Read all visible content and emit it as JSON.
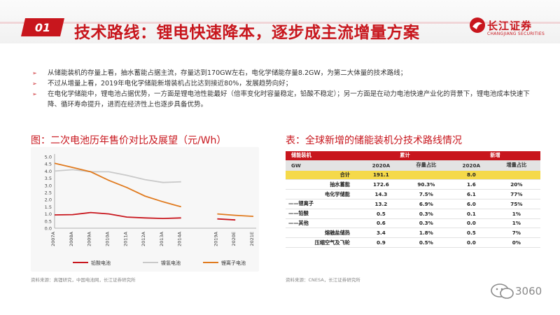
{
  "header": {
    "section_number": "01",
    "title": "技术路线：锂电快速降本，逐步成主流增量方案",
    "logo_name": "长江证券",
    "logo_en": "CHANGJIANG SECURITIES"
  },
  "bullets": [
    "从储能装机的存量上看，抽水蓄能占据主流，存量达到170GW左右，电化学储能存量8.2GW，为第二大体量的技术路线；",
    "不过从增量上看，2019年电化学储能新增装机占比达到接近80%，发展趋势向好；",
    "在电化学储能中，锂电池占据优势，一方面是锂电池性能最好（倍率变化时容量稳定，铅酸不稳定）；另一方面是在动力电池快速产业化的背景下，锂电池成本快速下降、循环寿命提升，进而在经济性上也逐步具备优势。"
  ],
  "figure": {
    "title": "图：二次电池历年售价对比及展望（元/Wh）",
    "source": "资料来源：真锂研究，中国电池网，长江证券研究所"
  },
  "table_section": {
    "title": "表：全球新增的储能装机分技术路线情况",
    "source": "资料来源：CNESA，长江证券研究所",
    "header_row1": [
      "储能装机",
      "累计",
      "",
      "新增",
      ""
    ],
    "header_row2": [
      "GW",
      "2020A",
      "存量占比",
      "2020A",
      "增量占比"
    ],
    "rows": [
      {
        "name": "合计",
        "c1": "191.1",
        "c2": "",
        "c3": "8.0",
        "c4": ""
      },
      {
        "name": "抽水蓄能",
        "c1": "172.6",
        "c2": "90.3%",
        "c3": "1.6",
        "c4": "20%"
      },
      {
        "name": "电化学储能",
        "c1": "14.3",
        "c2": "7.5%",
        "c3": "6.1",
        "c4": "77%"
      },
      {
        "name": "——锂离子",
        "c1": "13.2",
        "c2": "6.9%",
        "c3": "6.0",
        "c4": "75%"
      },
      {
        "name": "——铅酸",
        "c1": "0.5",
        "c2": "0.3%",
        "c3": "0.1",
        "c4": "1%"
      },
      {
        "name": "——其他",
        "c1": "0.6",
        "c2": "0.3%",
        "c3": "0.0",
        "c4": "1%"
      },
      {
        "name": "熔融盐储热",
        "c1": "3.4",
        "c2": "1.8%",
        "c3": "0.5",
        "c4": "7%"
      },
      {
        "name": "压缩空气及飞轮",
        "c1": "0.9",
        "c2": "0.5%",
        "c3": "0.0",
        "c4": "0%"
      }
    ]
  },
  "watermark": "3060",
  "colors": {
    "brand_red": "#c8161d",
    "table_total": "#f5d94a",
    "lead_acid": "#c8161d",
    "nimh": "#c9c9c9",
    "li_ion": "#e07a1e"
  },
  "chart_data": {
    "type": "line",
    "title": "图：二次电池历年售价对比及展望（元/Wh）",
    "categories": [
      "2007A",
      "2008A",
      "2009A",
      "2010A",
      "2011A",
      "2012A",
      "2013A",
      "2014A",
      "",
      "2019A",
      "2020E",
      "2021E"
    ],
    "ylim": [
      0,
      5.0
    ],
    "yticks": [
      "0.0",
      "0.5",
      "1.0",
      "1.5",
      "2.0",
      "2.5",
      "3.0",
      "3.5",
      "4.0",
      "4.5",
      "5.0"
    ],
    "legend_position": "bottom",
    "series": [
      {
        "name": "铅酸电池",
        "color": "#c8161d",
        "values": [
          0.93,
          0.95,
          1.1,
          1.0,
          0.78,
          0.72,
          0.68,
          0.72,
          null,
          0.65,
          0.58,
          null
        ]
      },
      {
        "name": "镍氢电池",
        "color": "#c9c9c9",
        "values": [
          4.0,
          4.1,
          3.95,
          3.95,
          3.7,
          3.4,
          3.2,
          3.25,
          null,
          null,
          null,
          null
        ]
      },
      {
        "name": "锂离子电池",
        "color": "#e07a1e",
        "values": [
          4.55,
          4.25,
          3.95,
          3.35,
          2.85,
          2.25,
          1.85,
          1.5,
          null,
          1.0,
          0.9,
          0.83
        ]
      }
    ]
  }
}
